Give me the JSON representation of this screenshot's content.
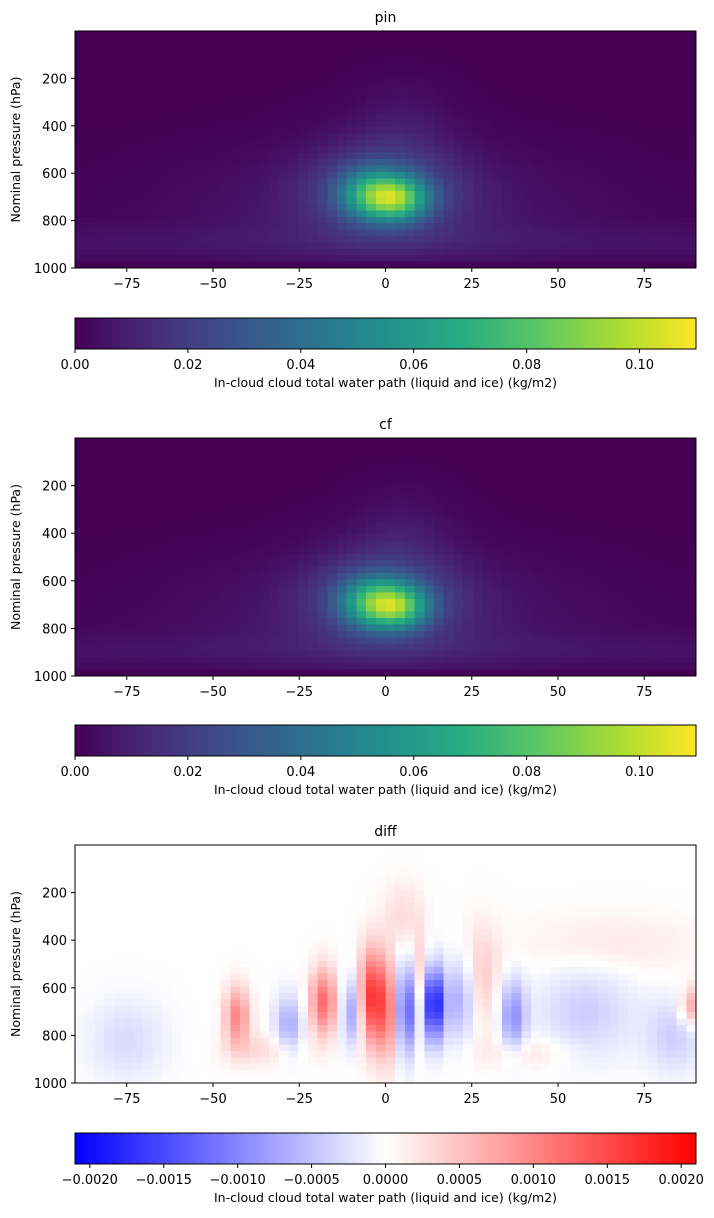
{
  "chart_data": [
    {
      "type": "heatmap",
      "title": "pin",
      "ylabel": "Nominal pressure (hPa)",
      "xlabel": "",
      "xlim": [
        -90,
        90
      ],
      "ylim": [
        1000,
        0
      ],
      "xticks": [
        -75,
        -50,
        -25,
        0,
        25,
        50,
        75
      ],
      "xtick_labels": [
        "−75",
        "−50",
        "−25",
        "0",
        "25",
        "50",
        "75"
      ],
      "yticks": [
        200,
        400,
        600,
        800,
        1000
      ],
      "ytick_labels": [
        "200",
        "400",
        "600",
        "800",
        "1000"
      ],
      "grid": false,
      "colormap": "viridis",
      "colorbar": {
        "label": "In-cloud cloud total water path (liquid and ice) (kg/m2)",
        "range": [
          0,
          0.11
        ],
        "ticks": [
          0.0,
          0.02,
          0.04,
          0.06,
          0.08,
          0.1
        ],
        "tick_labels": [
          "0.00",
          "0.02",
          "0.04",
          "0.06",
          "0.08",
          "0.10"
        ],
        "orientation": "horizontal"
      },
      "field": {
        "max_value": 0.11,
        "peak_lat": 4,
        "peak_pressure": 710
      }
    },
    {
      "type": "heatmap",
      "title": "cf",
      "ylabel": "Nominal pressure (hPa)",
      "xlabel": "",
      "xlim": [
        -90,
        90
      ],
      "ylim": [
        1000,
        0
      ],
      "xticks": [
        -75,
        -50,
        -25,
        0,
        25,
        50,
        75
      ],
      "xtick_labels": [
        "−75",
        "−50",
        "−25",
        "0",
        "25",
        "50",
        "75"
      ],
      "yticks": [
        200,
        400,
        600,
        800,
        1000
      ],
      "ytick_labels": [
        "200",
        "400",
        "600",
        "800",
        "1000"
      ],
      "grid": false,
      "colormap": "viridis",
      "colorbar": {
        "label": "In-cloud cloud total water path (liquid and ice) (kg/m2)",
        "range": [
          0,
          0.11
        ],
        "ticks": [
          0.0,
          0.02,
          0.04,
          0.06,
          0.08,
          0.1
        ],
        "tick_labels": [
          "0.00",
          "0.02",
          "0.04",
          "0.06",
          "0.08",
          "0.10"
        ],
        "orientation": "horizontal"
      },
      "field": {
        "max_value": 0.11,
        "peak_lat": 4,
        "peak_pressure": 710
      }
    },
    {
      "type": "heatmap",
      "title": "diff",
      "ylabel": "Nominal pressure (hPa)",
      "xlabel": "",
      "xlim": [
        -90,
        90
      ],
      "ylim": [
        1000,
        0
      ],
      "xticks": [
        -75,
        -50,
        -25,
        0,
        25,
        50,
        75
      ],
      "xtick_labels": [
        "−75",
        "−50",
        "−25",
        "0",
        "25",
        "50",
        "75"
      ],
      "yticks": [
        200,
        400,
        600,
        800,
        1000
      ],
      "ytick_labels": [
        "200",
        "400",
        "600",
        "800",
        "1000"
      ],
      "grid": false,
      "colormap": "bwr",
      "colorbar": {
        "label": "In-cloud cloud total water path (liquid and ice) (kg/m2)",
        "range": [
          -0.0021,
          0.0021
        ],
        "ticks": [
          -0.002,
          -0.0015,
          -0.001,
          -0.0005,
          0.0,
          0.0005,
          0.001,
          0.0015,
          0.002
        ],
        "tick_labels": [
          "−0.0020",
          "−0.0015",
          "−0.0010",
          "−0.0005",
          "0.0000",
          "0.0005",
          "0.0010",
          "0.0015",
          "0.0020"
        ],
        "orientation": "horizontal"
      },
      "field": {
        "max_abs_value": 0.0021,
        "strong_negative": [
          {
            "lat": 14,
            "pressure": 670,
            "value": -0.002
          },
          {
            "lat": 6,
            "pressure": 680,
            "value": -0.0014
          }
        ],
        "strong_positive": [
          {
            "lat": -4,
            "pressure": 650,
            "value": 0.0016
          },
          {
            "lat": -18,
            "pressure": 660,
            "value": 0.0012
          },
          {
            "lat": -43,
            "pressure": 720,
            "value": 0.001
          }
        ]
      }
    }
  ],
  "colors": {
    "axes_edge": "#000000",
    "background": "#ffffff"
  }
}
